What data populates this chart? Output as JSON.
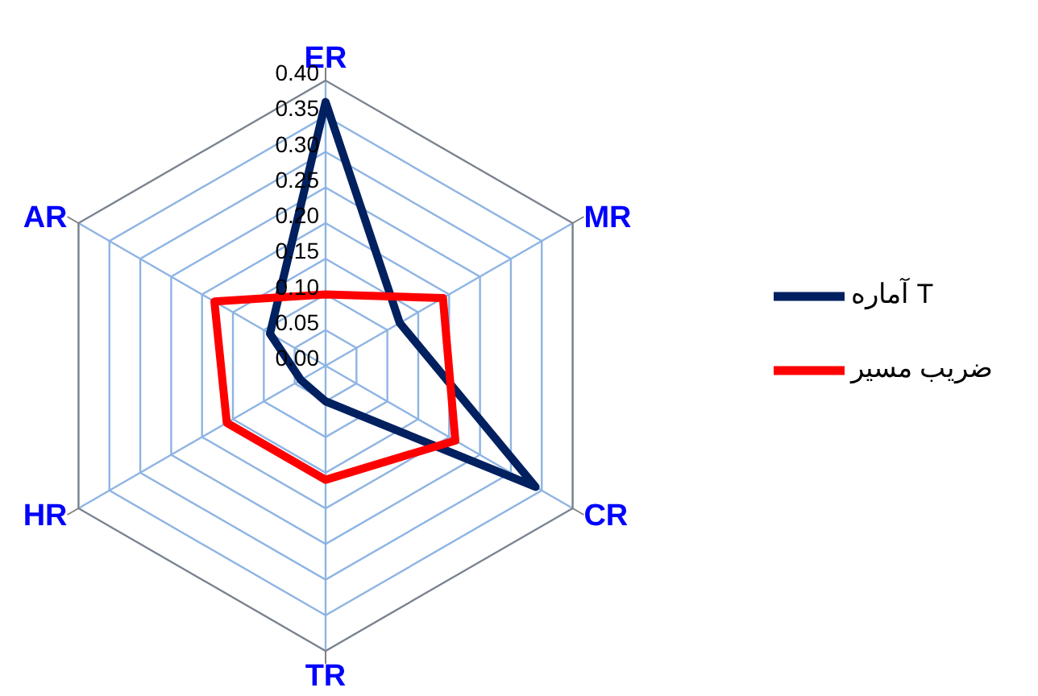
{
  "chart_data": {
    "type": "radar",
    "categories": [
      "ER",
      "MR",
      "CR",
      "TR",
      "HR",
      "AR"
    ],
    "series": [
      {
        "name": "آماره T",
        "color": "#002060",
        "values": [
          0.37,
          0.12,
          0.34,
          0.05,
          0.04,
          0.09
        ]
      },
      {
        "name": "ضریب مسیر",
        "color": "#ff0000",
        "values": [
          0.1,
          0.19,
          0.21,
          0.16,
          0.16,
          0.18
        ]
      }
    ],
    "ylim": [
      0,
      0.4
    ],
    "yticks": [
      {
        "value": 0,
        "label": "0.00"
      },
      {
        "value": 0.05,
        "label": "0.05"
      },
      {
        "value": 0.1,
        "label": "0.10"
      },
      {
        "value": 0.15,
        "label": "0.15"
      },
      {
        "value": 0.2,
        "label": "0.20"
      },
      {
        "value": 0.25,
        "label": "0.25"
      },
      {
        "value": 0.3,
        "label": "0.30"
      },
      {
        "value": 0.35,
        "label": "0.35"
      },
      {
        "value": 0.4,
        "label": "0.40"
      }
    ],
    "grid": true,
    "legend": "right"
  }
}
